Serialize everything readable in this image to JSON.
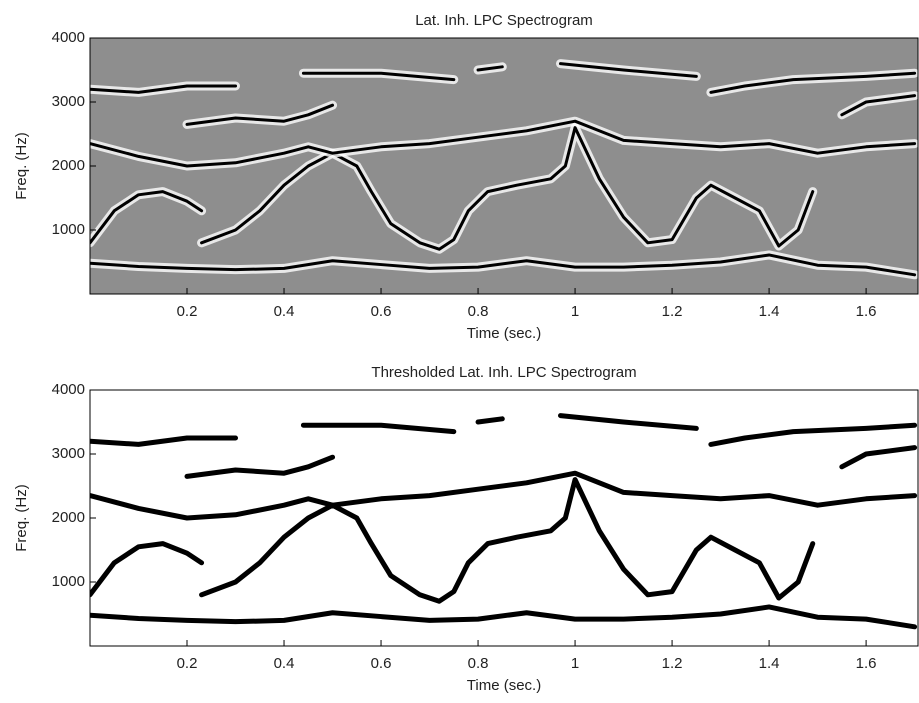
{
  "chart_data": [
    {
      "type": "spectrogram",
      "title": "Lat. Inh. LPC Spectrogram",
      "xlabel": "Time (sec.)",
      "ylabel": "Freq. (Hz)",
      "xlim": [
        0,
        1.707
      ],
      "ylim": [
        0,
        4000
      ],
      "xticks": [
        0.2,
        0.4,
        0.6,
        0.8,
        1,
        1.2,
        1.4,
        1.6
      ],
      "yticks": [
        1000,
        2000,
        3000,
        4000
      ],
      "background": "#8e8e8e",
      "color": "#000000",
      "series": [
        {
          "x": [
            0,
            0.1,
            0.2,
            0.3,
            0.4,
            0.5,
            0.6,
            0.7,
            0.8,
            0.9,
            1.0,
            1.1,
            1.2,
            1.3,
            1.4,
            1.5,
            1.6,
            1.7
          ],
          "values": [
            480,
            430,
            400,
            380,
            400,
            520,
            460,
            400,
            420,
            520,
            420,
            420,
            450,
            500,
            610,
            450,
            420,
            300
          ]
        },
        {
          "x": [
            0,
            0.05,
            0.1,
            0.15,
            0.2,
            0.23
          ],
          "values": [
            800,
            1300,
            1550,
            1600,
            1450,
            1300
          ]
        },
        {
          "x": [
            0.23,
            0.3,
            0.35,
            0.4,
            0.45,
            0.5,
            0.55,
            0.58,
            0.62,
            0.68,
            0.72,
            0.75,
            0.78,
            0.82,
            0.88,
            0.95,
            0.98,
            1.0,
            1.05,
            1.1,
            1.15,
            1.2,
            1.25,
            1.28,
            1.33,
            1.38,
            1.42,
            1.46,
            1.49
          ],
          "values": [
            800,
            1000,
            1300,
            1700,
            2000,
            2200,
            2000,
            1600,
            1100,
            800,
            700,
            850,
            1300,
            1600,
            1700,
            1800,
            2000,
            2600,
            1800,
            1200,
            800,
            850,
            1500,
            1700,
            1500,
            1300,
            750,
            1000,
            1600
          ]
        },
        {
          "x": [
            0,
            0.1,
            0.2,
            0.3,
            0.4,
            0.45,
            0.5,
            0.6,
            0.7,
            0.8,
            0.9,
            1.0,
            1.1,
            1.2,
            1.3,
            1.4,
            1.5,
            1.6,
            1.7
          ],
          "values": [
            2350,
            2150,
            2000,
            2050,
            2200,
            2300,
            2200,
            2300,
            2350,
            2450,
            2550,
            2700,
            2400,
            2350,
            2300,
            2350,
            2200,
            2300,
            2350
          ]
        },
        {
          "x": [
            0,
            0.1,
            0.2,
            0.3
          ],
          "values": [
            3200,
            3150,
            3250,
            3250
          ]
        },
        {
          "x": [
            0.2,
            0.3,
            0.4,
            0.45,
            0.5
          ],
          "values": [
            2650,
            2750,
            2700,
            2800,
            2950
          ]
        },
        {
          "x": [
            0.44,
            0.6,
            0.75
          ],
          "values": [
            3450,
            3450,
            3350
          ]
        },
        {
          "x": [
            0.8,
            0.85
          ],
          "values": [
            3500,
            3550
          ]
        },
        {
          "x": [
            0.97,
            1.1,
            1.25
          ],
          "values": [
            3600,
            3500,
            3400
          ]
        },
        {
          "x": [
            1.28,
            1.35,
            1.45,
            1.6,
            1.7
          ],
          "values": [
            3150,
            3250,
            3350,
            3400,
            3450
          ]
        },
        {
          "x": [
            1.55,
            1.6,
            1.7
          ],
          "values": [
            2800,
            3000,
            3100
          ]
        }
      ]
    },
    {
      "type": "spectrogram",
      "title": "Thresholded Lat. Inh. LPC Spectrogram",
      "xlabel": "Time (sec.)",
      "ylabel": "Freq. (Hz)",
      "xlim": [
        0,
        1.707
      ],
      "ylim": [
        0,
        4000
      ],
      "xticks": [
        0.2,
        0.4,
        0.6,
        0.8,
        1,
        1.2,
        1.4,
        1.6
      ],
      "yticks": [
        1000,
        2000,
        3000,
        4000
      ],
      "background": "#ffffff",
      "color": "#000000",
      "series": [
        {
          "x": [
            0,
            0.1,
            0.2,
            0.3,
            0.4,
            0.5,
            0.6,
            0.7,
            0.8,
            0.9,
            1.0,
            1.1,
            1.2,
            1.3,
            1.4,
            1.5,
            1.6,
            1.7
          ],
          "values": [
            480,
            430,
            400,
            380,
            400,
            520,
            460,
            400,
            420,
            520,
            420,
            420,
            450,
            500,
            610,
            450,
            420,
            300
          ]
        },
        {
          "x": [
            0,
            0.05,
            0.1,
            0.15,
            0.2,
            0.23
          ],
          "values": [
            800,
            1300,
            1550,
            1600,
            1450,
            1300
          ]
        },
        {
          "x": [
            0.23,
            0.3,
            0.35,
            0.4,
            0.45,
            0.5,
            0.55,
            0.58,
            0.62,
            0.68,
            0.72,
            0.75,
            0.78,
            0.82,
            0.88,
            0.95,
            0.98,
            1.0,
            1.05,
            1.1,
            1.15,
            1.2,
            1.25,
            1.28,
            1.33,
            1.38,
            1.42,
            1.46,
            1.49
          ],
          "values": [
            800,
            1000,
            1300,
            1700,
            2000,
            2200,
            2000,
            1600,
            1100,
            800,
            700,
            850,
            1300,
            1600,
            1700,
            1800,
            2000,
            2600,
            1800,
            1200,
            800,
            850,
            1500,
            1700,
            1500,
            1300,
            750,
            1000,
            1600
          ]
        },
        {
          "x": [
            0,
            0.1,
            0.2,
            0.3,
            0.4,
            0.45,
            0.5,
            0.6,
            0.7,
            0.8,
            0.9,
            1.0,
            1.1,
            1.2,
            1.3,
            1.4,
            1.5,
            1.6,
            1.7
          ],
          "values": [
            2350,
            2150,
            2000,
            2050,
            2200,
            2300,
            2200,
            2300,
            2350,
            2450,
            2550,
            2700,
            2400,
            2350,
            2300,
            2350,
            2200,
            2300,
            2350
          ]
        },
        {
          "x": [
            0,
            0.1,
            0.2,
            0.3
          ],
          "values": [
            3200,
            3150,
            3250,
            3250
          ]
        },
        {
          "x": [
            0.2,
            0.3,
            0.4,
            0.45,
            0.5
          ],
          "values": [
            2650,
            2750,
            2700,
            2800,
            2950
          ]
        },
        {
          "x": [
            0.44,
            0.6,
            0.75
          ],
          "values": [
            3450,
            3450,
            3350
          ]
        },
        {
          "x": [
            0.8,
            0.85
          ],
          "values": [
            3500,
            3550
          ]
        },
        {
          "x": [
            0.97,
            1.1,
            1.25
          ],
          "values": [
            3600,
            3500,
            3400
          ]
        },
        {
          "x": [
            1.28,
            1.35,
            1.45,
            1.6,
            1.7
          ],
          "values": [
            3150,
            3250,
            3350,
            3400,
            3450
          ]
        },
        {
          "x": [
            1.55,
            1.6,
            1.7
          ],
          "values": [
            2800,
            3000,
            3100
          ]
        }
      ]
    }
  ]
}
